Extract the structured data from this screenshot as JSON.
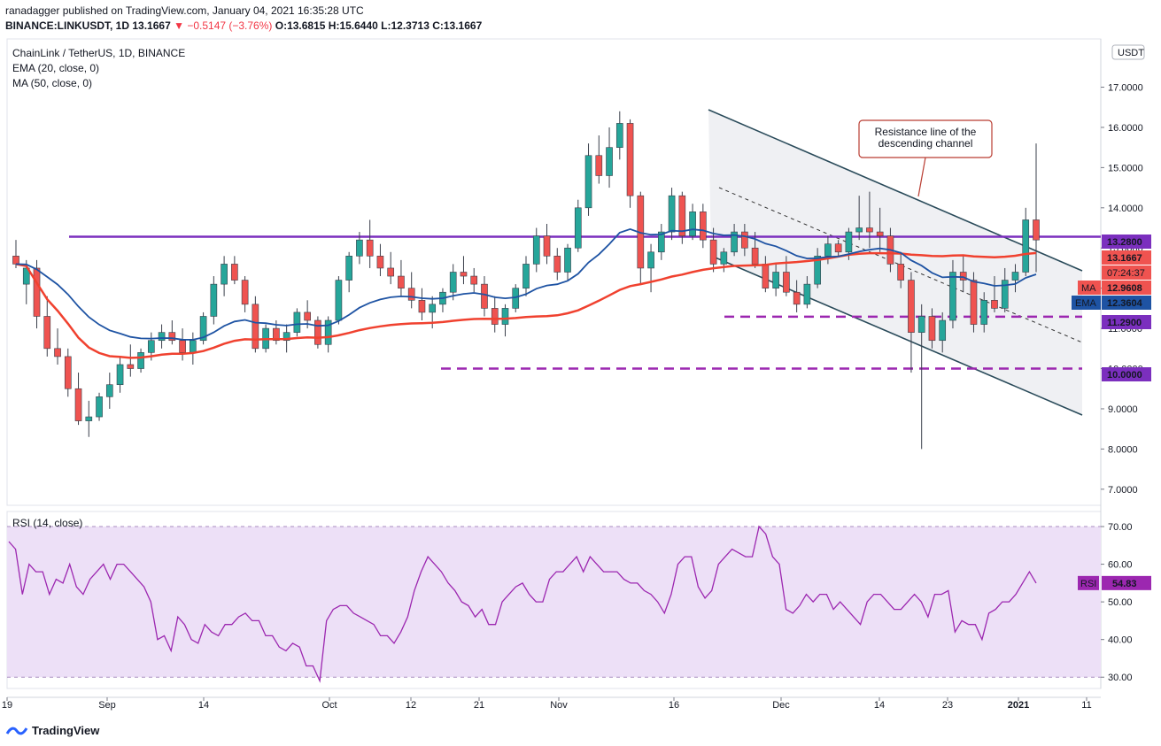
{
  "header": {
    "published_line": "ranadagger published on TradingView.com, January 04, 2021 16:35:28 UTC",
    "symbol": "BINANCE:LINKUSDT, 1D",
    "price": "13.1667",
    "change": "−0.5147 (−3.76%)",
    "ohlc": "O:13.6815 H:15.6440 L:12.3713 C:13.1667"
  },
  "legend": {
    "title": "ChainLink / TetherUS, 1D, BINANCE",
    "ema": "EMA (20, close, 0)",
    "ma": "MA (50, close, 0)",
    "rsi": "RSI (14, close)"
  },
  "footer": {
    "brand": "TradingView"
  },
  "colors": {
    "up": "#26a69a",
    "down": "#ef5350",
    "ema": "#1e53a3",
    "ma": "#f0412f",
    "hline": "#7b2fbe",
    "dash": "#9c27b0",
    "rsi": "#9c27b0",
    "channel": "#2a4b5a",
    "box": "#b93c31"
  },
  "chart_data": {
    "type": "candlestick",
    "symbol": "LINKUSDT",
    "exchange": "BINANCE",
    "timeframe": "1D",
    "currency": "USDT",
    "x_axis_labels": [
      "19",
      "Sep",
      "14",
      "Oct",
      "12",
      "21",
      "Nov",
      "16",
      "Dec",
      "14",
      "23",
      "2021",
      "11"
    ],
    "y_axis_ticks": [
      "7.0000",
      "8.0000",
      "9.0000",
      "10.0000",
      "11.0000",
      "12.0000",
      "13.0000",
      "14.0000",
      "15.0000",
      "16.0000",
      "17.0000"
    ],
    "ylim": [
      6.6,
      18.2
    ],
    "candles_ohlc": [
      [
        12.8,
        13.2,
        12.5,
        12.6
      ],
      [
        12.1,
        12.7,
        11.6,
        12.5
      ],
      [
        12.5,
        12.7,
        11.0,
        11.3
      ],
      [
        11.3,
        11.8,
        10.3,
        10.5
      ],
      [
        10.5,
        11.0,
        10.1,
        10.3
      ],
      [
        10.3,
        10.5,
        9.3,
        9.5
      ],
      [
        9.5,
        9.9,
        8.6,
        8.7
      ],
      [
        8.7,
        9.2,
        8.3,
        8.8
      ],
      [
        8.8,
        9.4,
        8.7,
        9.3
      ],
      [
        9.3,
        9.9,
        9.0,
        9.6
      ],
      [
        9.6,
        10.3,
        9.4,
        10.1
      ],
      [
        10.1,
        10.6,
        9.8,
        10.0
      ],
      [
        10.0,
        10.5,
        9.9,
        10.4
      ],
      [
        10.4,
        10.9,
        10.2,
        10.7
      ],
      [
        10.7,
        11.1,
        10.5,
        10.9
      ],
      [
        10.9,
        11.2,
        10.6,
        10.7
      ],
      [
        10.7,
        11.0,
        10.2,
        10.4
      ],
      [
        10.4,
        10.9,
        10.1,
        10.7
      ],
      [
        10.7,
        11.4,
        10.6,
        11.3
      ],
      [
        11.3,
        12.3,
        11.1,
        12.1
      ],
      [
        12.1,
        12.8,
        11.8,
        12.6
      ],
      [
        12.6,
        12.8,
        12.1,
        12.2
      ],
      [
        12.2,
        12.3,
        11.4,
        11.6
      ],
      [
        11.6,
        11.8,
        10.4,
        10.5
      ],
      [
        10.5,
        11.1,
        10.4,
        11.0
      ],
      [
        11.0,
        11.2,
        10.6,
        10.7
      ],
      [
        10.7,
        11.1,
        10.4,
        10.9
      ],
      [
        10.9,
        11.5,
        10.8,
        11.4
      ],
      [
        11.4,
        11.7,
        11.0,
        11.2
      ],
      [
        11.2,
        11.3,
        10.5,
        10.6
      ],
      [
        10.6,
        11.3,
        10.4,
        11.2
      ],
      [
        11.2,
        12.3,
        11.1,
        12.2
      ],
      [
        12.2,
        12.9,
        11.9,
        12.8
      ],
      [
        12.8,
        13.4,
        12.6,
        13.2
      ],
      [
        13.2,
        13.7,
        12.5,
        12.8
      ],
      [
        12.8,
        13.1,
        12.3,
        12.5
      ],
      [
        12.5,
        12.9,
        12.1,
        12.3
      ],
      [
        12.3,
        12.7,
        11.8,
        12.0
      ],
      [
        12.0,
        12.4,
        11.5,
        11.7
      ],
      [
        11.7,
        12.0,
        11.2,
        11.4
      ],
      [
        11.4,
        11.8,
        11.0,
        11.6
      ],
      [
        11.6,
        12.0,
        11.4,
        11.9
      ],
      [
        11.9,
        12.6,
        11.7,
        12.4
      ],
      [
        12.4,
        12.8,
        12.1,
        12.3
      ],
      [
        12.3,
        12.5,
        11.9,
        12.1
      ],
      [
        12.1,
        12.3,
        11.3,
        11.5
      ],
      [
        11.5,
        11.8,
        10.9,
        11.1
      ],
      [
        11.1,
        11.6,
        10.8,
        11.5
      ],
      [
        11.5,
        12.1,
        11.4,
        12.0
      ],
      [
        12.0,
        12.8,
        11.8,
        12.6
      ],
      [
        12.6,
        13.5,
        12.4,
        13.3
      ],
      [
        13.3,
        13.6,
        12.6,
        12.8
      ],
      [
        12.8,
        13.0,
        12.2,
        12.4
      ],
      [
        12.4,
        13.1,
        12.2,
        13.0
      ],
      [
        13.0,
        14.2,
        12.9,
        14.0
      ],
      [
        14.0,
        15.6,
        13.8,
        15.3
      ],
      [
        15.3,
        15.8,
        14.6,
        14.8
      ],
      [
        14.8,
        16.0,
        14.5,
        15.5
      ],
      [
        15.5,
        16.4,
        15.2,
        16.1
      ],
      [
        16.1,
        16.2,
        14.0,
        14.3
      ],
      [
        14.3,
        14.4,
        12.1,
        12.5
      ],
      [
        12.5,
        13.1,
        11.9,
        12.9
      ],
      [
        12.9,
        13.6,
        12.7,
        13.4
      ],
      [
        13.4,
        14.5,
        13.2,
        14.3
      ],
      [
        14.3,
        14.4,
        13.1,
        13.3
      ],
      [
        13.3,
        14.1,
        13.2,
        13.9
      ],
      [
        13.9,
        14.1,
        13.0,
        13.2
      ],
      [
        13.2,
        13.5,
        12.4,
        12.6
      ],
      [
        12.6,
        13.0,
        12.4,
        12.9
      ],
      [
        12.9,
        13.6,
        12.8,
        13.4
      ],
      [
        13.4,
        13.6,
        12.8,
        13.0
      ],
      [
        13.0,
        13.4,
        12.5,
        12.6
      ],
      [
        12.6,
        12.8,
        11.9,
        12.0
      ],
      [
        12.0,
        12.6,
        11.8,
        12.4
      ],
      [
        12.4,
        12.8,
        11.8,
        11.9
      ],
      [
        11.9,
        12.2,
        11.4,
        11.6
      ],
      [
        11.6,
        12.3,
        11.5,
        12.1
      ],
      [
        12.1,
        13.0,
        12.0,
        12.8
      ],
      [
        12.8,
        13.3,
        12.6,
        13.1
      ],
      [
        13.1,
        13.2,
        12.8,
        12.9
      ],
      [
        12.9,
        13.5,
        12.7,
        13.4
      ],
      [
        13.4,
        14.3,
        13.2,
        13.5
      ],
      [
        13.5,
        14.4,
        13.0,
        13.4
      ],
      [
        13.4,
        14.0,
        12.9,
        13.3
      ],
      [
        13.3,
        13.5,
        12.4,
        12.6
      ],
      [
        12.6,
        12.9,
        12.0,
        12.2
      ],
      [
        12.2,
        12.4,
        9.9,
        10.9
      ],
      [
        10.9,
        11.6,
        8.0,
        11.3
      ],
      [
        11.3,
        11.5,
        10.5,
        10.7
      ],
      [
        10.7,
        11.4,
        10.4,
        11.2
      ],
      [
        11.2,
        12.7,
        11.0,
        12.4
      ],
      [
        12.4,
        12.8,
        11.9,
        12.2
      ],
      [
        12.2,
        12.4,
        10.9,
        11.1
      ],
      [
        11.1,
        11.9,
        10.9,
        11.7
      ],
      [
        11.7,
        12.3,
        11.4,
        11.5
      ],
      [
        11.5,
        12.5,
        11.4,
        12.2
      ],
      [
        12.2,
        12.6,
        11.9,
        12.4
      ],
      [
        12.4,
        14.0,
        12.3,
        13.7
      ],
      [
        13.7,
        15.6,
        12.4,
        13.2
      ]
    ],
    "series": [
      {
        "name": "EMA (20, close, 0)",
        "last_value": 12.3604
      },
      {
        "name": "MA (50, close, 0)",
        "last_value": 12.9608
      }
    ],
    "price_labels": [
      {
        "value": 13.28,
        "label": "13.2800"
      },
      {
        "value": 13.1667,
        "label": "13.1667"
      },
      {
        "value": 12.9608,
        "label": "12.9608",
        "tag": "MA"
      },
      {
        "value": 12.3604,
        "label": "12.3604",
        "tag": "EMA"
      },
      {
        "value": 11.29,
        "label": "11.2900"
      },
      {
        "value": 10.0,
        "label": "10.0000"
      }
    ],
    "countdown": "07:24:37",
    "horizontal_lines": [
      {
        "value": 13.28,
        "style": "solid"
      },
      {
        "value": 11.29,
        "style": "dashed"
      },
      {
        "value": 10.0,
        "style": "dashed"
      }
    ],
    "annotation": "Resistance line of the descending channel",
    "rsi": {
      "name": "RSI (14, close)",
      "ylim": [
        27,
        74
      ],
      "ticks": [
        "30.00",
        "40.00",
        "50.00",
        "60.00",
        "70.00"
      ],
      "bands": [
        30,
        70
      ],
      "last_label": "54.83",
      "values": [
        66,
        64,
        52,
        60,
        58,
        58,
        52,
        56,
        55,
        60,
        54,
        52,
        56,
        58,
        60,
        56,
        60,
        60,
        58,
        56,
        54,
        50,
        40,
        41,
        37,
        46,
        44,
        40,
        39,
        44,
        42,
        41,
        44,
        44,
        46,
        47,
        45,
        45,
        41,
        41,
        38,
        37,
        39,
        38,
        33,
        33,
        29,
        45,
        48,
        49,
        49,
        47,
        46,
        45,
        44,
        41,
        41,
        39,
        42,
        46,
        53,
        58,
        62,
        60,
        58,
        55,
        53,
        50,
        49,
        46,
        48,
        44,
        44,
        50,
        52,
        54,
        55,
        52,
        50,
        50,
        56,
        58,
        58,
        60,
        62,
        58,
        62,
        60,
        58,
        58,
        58,
        56,
        55,
        55,
        53,
        52,
        50,
        47,
        52,
        60,
        62,
        62,
        54,
        51,
        53,
        60,
        62,
        64,
        63,
        62,
        62,
        70,
        68,
        62,
        60,
        48,
        47,
        49,
        52,
        50,
        52,
        52,
        48,
        50,
        48,
        46,
        44,
        50,
        52,
        52,
        50,
        48,
        48,
        50,
        52,
        50,
        46,
        52,
        52,
        53,
        42,
        45,
        44,
        44,
        40,
        47,
        48,
        50,
        50,
        52,
        55,
        58,
        55
      ]
    }
  }
}
